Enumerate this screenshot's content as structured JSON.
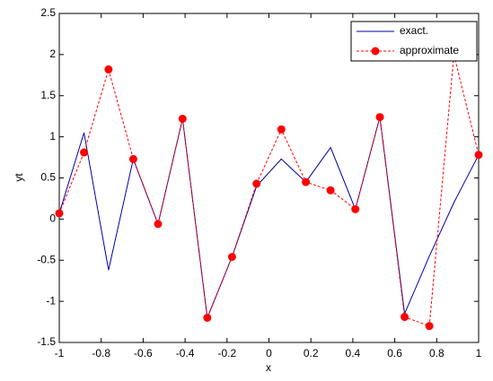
{
  "chart_data": {
    "type": "line",
    "x_label": "x",
    "y_label": "yt",
    "x": [
      -1,
      -0.882,
      -0.765,
      -0.647,
      -0.529,
      -0.412,
      -0.294,
      -0.176,
      -0.059,
      0.059,
      0.176,
      0.294,
      0.412,
      0.529,
      0.647,
      0.765,
      0.882,
      1
    ],
    "series": [
      {
        "name": "exact.",
        "color": "#0000aa",
        "line_style": "solid",
        "marker": false,
        "values": [
          0.07,
          1.05,
          -0.62,
          0.73,
          -0.06,
          1.22,
          -1.2,
          -0.46,
          0.4,
          0.73,
          0.45,
          0.87,
          0.12,
          1.24,
          -1.15,
          -0.45,
          0.2,
          0.78
        ]
      },
      {
        "name": "approximate",
        "color": "#ff0000",
        "line_style": "dashed",
        "marker": true,
        "values": [
          0.07,
          0.81,
          1.82,
          0.73,
          -0.06,
          1.22,
          -1.2,
          -0.46,
          0.43,
          1.09,
          0.45,
          0.35,
          0.12,
          1.24,
          -1.19,
          -1.3,
          2.0,
          0.78
        ]
      }
    ],
    "xlim": [
      -1,
      1
    ],
    "xticks": [
      -1,
      -0.8,
      -0.6,
      -0.4,
      -0.2,
      0,
      0.2,
      0.4,
      0.6,
      0.8,
      1
    ],
    "ylim": [
      -1.5,
      2.5
    ],
    "yticks": [
      -1.5,
      -1,
      -0.5,
      0,
      0.5,
      1,
      1.5,
      2,
      2.5
    ],
    "grid": false,
    "legend": "top-right"
  }
}
